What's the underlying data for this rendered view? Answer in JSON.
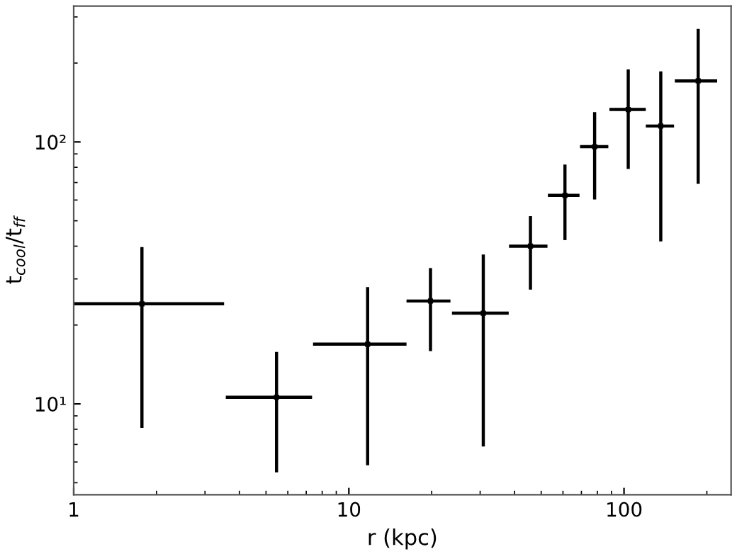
{
  "chart_data": {
    "type": "scatter",
    "log": "xy",
    "grid": false,
    "xlabel": "r (kpc)",
    "ylabel": "t$_{cool}$/t$_{ff}$",
    "xlim": [
      1,
      245
    ],
    "ylim": [
      4.5,
      330
    ],
    "xticks": [
      1,
      10,
      100
    ],
    "yticks": [
      {
        "value": 10,
        "label": "10¹"
      },
      {
        "value": 100,
        "label": "10²"
      }
    ],
    "series": [
      {
        "color": "#000000",
        "x": [
          1.77,
          5.46,
          11.7,
          19.8,
          30.8,
          45.7,
          61.0,
          78.2,
          103.6,
          136,
          186
        ],
        "values": [
          24.1,
          10.6,
          16.9,
          24.7,
          22.2,
          40.0,
          62.5,
          95.9,
          133,
          115,
          171
        ],
        "errors": [
          [
            8.1,
            39.7
          ],
          [
            5.48,
            15.8
          ],
          [
            5.83,
            27.9
          ],
          [
            15.9,
            33.0
          ],
          [
            6.88,
            37.2
          ],
          [
            27.3,
            52.1
          ],
          [
            42.2,
            82.0
          ],
          [
            60.3,
            130
          ],
          [
            78.9,
            189
          ],
          [
            41.7,
            186
          ],
          [
            69.2,
            270
          ]
        ],
        "xerrors": [
          [
            1.0,
            3.52
          ],
          [
            3.57,
            7.35
          ],
          [
            7.41,
            16.2
          ],
          [
            16.2,
            23.4
          ],
          [
            23.7,
            38.1
          ],
          [
            38.2,
            52.7
          ],
          [
            52.9,
            68.9
          ],
          [
            69.2,
            87.7
          ],
          [
            88.5,
            120
          ],
          [
            120,
            152
          ],
          [
            153,
            218
          ]
        ]
      }
    ]
  }
}
